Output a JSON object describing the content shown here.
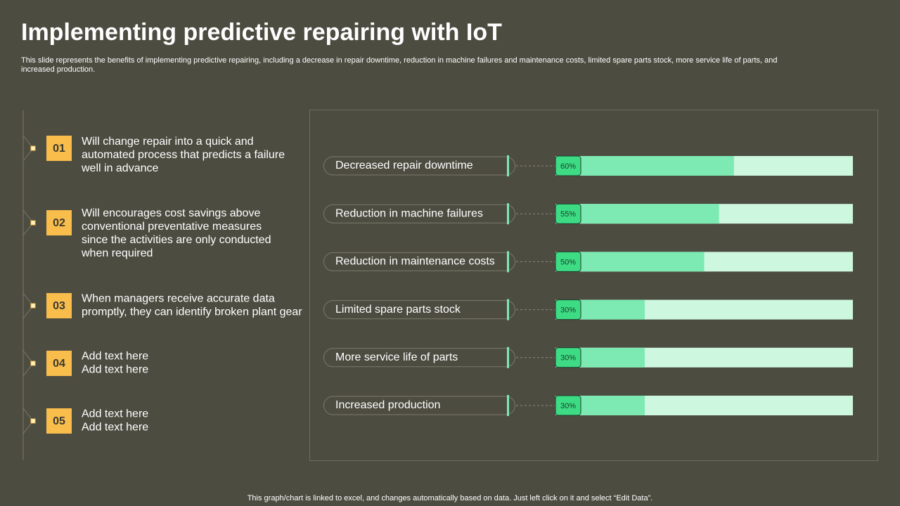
{
  "title": "Implementing predictive repairing with IoT",
  "subtitle_lines": [
    "This slide represents the benefits of implementing predictive repairing, including a decrease in repair downtime, reduction in machine failures and maintenance costs, limited spare parts stock, more service life of parts, and",
    "increased production."
  ],
  "items": [
    {
      "number": "01",
      "lines": [
        "Will change repair into a quick and",
        "automated process that predicts a failure",
        "well in advance"
      ]
    },
    {
      "number": "02",
      "lines": [
        "Will encourages cost savings above",
        "conventional  preventative measures",
        "since the activities are only conducted",
        "when required"
      ]
    },
    {
      "number": "03",
      "lines": [
        "When managers receive accurate data",
        "promptly,  they can identify broken plant gear"
      ]
    },
    {
      "number": "04",
      "lines": [
        "Add text here",
        "Add text here"
      ]
    },
    {
      "number": "05",
      "lines": [
        "Add text here",
        "Add text here"
      ]
    }
  ],
  "chart_data": {
    "type": "bar",
    "categories": [
      "Decreased repair downtime",
      "Reduction in machine failures",
      "Reduction in maintenance  costs",
      "Limited spare parts stock",
      "More service life of parts",
      "Increased production"
    ],
    "values": [
      60,
      55,
      50,
      30,
      30,
      30
    ],
    "value_labels": [
      "60%",
      "55%",
      "50%",
      "30%",
      "30%",
      "30%"
    ],
    "xlim": [
      0,
      100
    ],
    "color": "#7de9b3",
    "track_color": "#cdf7df",
    "label_color": "#3ddc84"
  },
  "footer": "This graph/chart is linked to excel,  and changes automatically based on data. Just left click on it and select “Edit Data”."
}
